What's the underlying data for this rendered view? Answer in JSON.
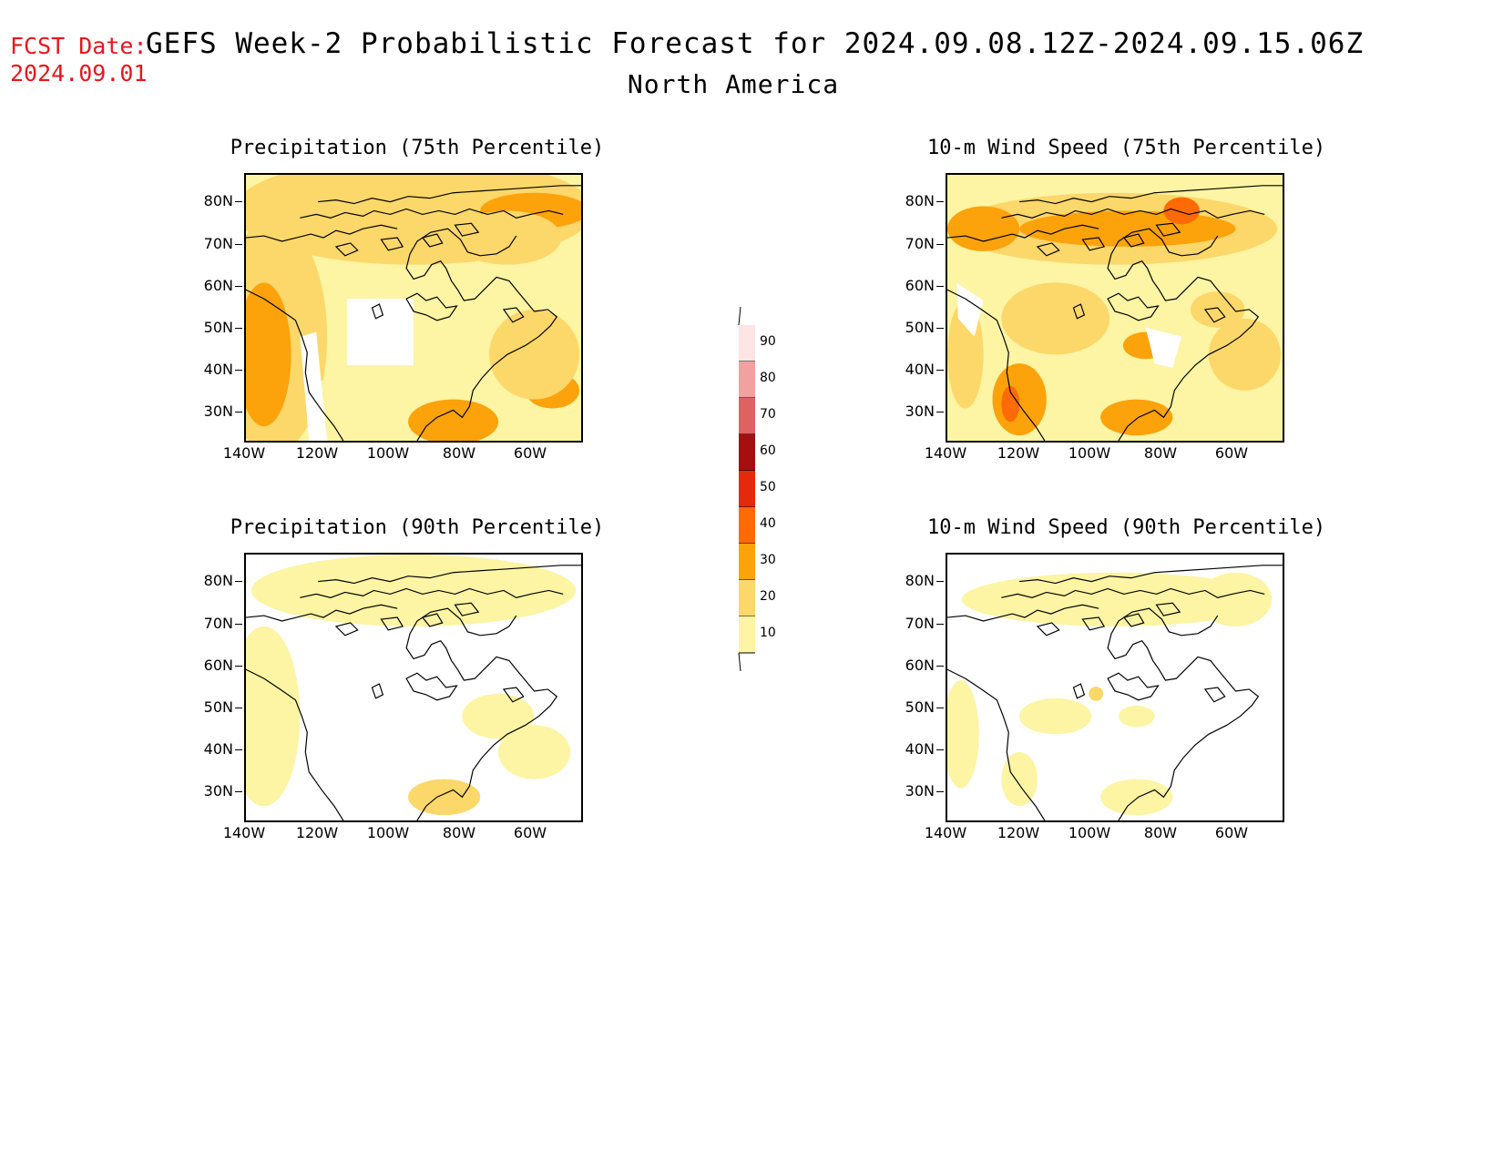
{
  "header": {
    "fcst_label": "FCST Date:",
    "fcst_date": "2024.09.01",
    "title": "GEFS Week-2 Probabilistic Forecast for 2024.09.08.12Z-2024.09.15.06Z",
    "subtitle": "North America"
  },
  "axes": {
    "lat_ticks": [
      "80N",
      "70N",
      "60N",
      "50N",
      "40N",
      "30N"
    ],
    "lon_ticks": [
      "140W",
      "120W",
      "100W",
      "80W",
      "60W"
    ]
  },
  "panels": [
    {
      "id": "precip-75",
      "title": "Precipitation (75th Percentile)",
      "variable": "precipitation",
      "percentile": 75
    },
    {
      "id": "wind-75",
      "title": "10-m Wind Speed (75th Percentile)",
      "variable": "10-m wind speed",
      "percentile": 75
    },
    {
      "id": "precip-90",
      "title": "Precipitation (90th Percentile)",
      "variable": "precipitation",
      "percentile": 90
    },
    {
      "id": "wind-90",
      "title": "10-m Wind Speed (90th Percentile)",
      "variable": "10-m wind speed",
      "percentile": 90
    }
  ],
  "colorbar": {
    "labels": [
      "90",
      "80",
      "70",
      "60",
      "50",
      "40",
      "30",
      "20",
      "10"
    ],
    "colors": [
      "#fde5e5",
      "#f2a0a0",
      "#de6262",
      "#a50f0f",
      "#e32b0c",
      "#fd6a06",
      "#fca20a",
      "#fcd769",
      "#fdf4a4"
    ],
    "low_color": "#ffffff"
  },
  "map_colors": {
    "c10": "#fdf4a4",
    "c20": "#fcd769",
    "c30": "#fca20a",
    "c40": "#fd6a06",
    "c50": "#e32b0c"
  }
}
